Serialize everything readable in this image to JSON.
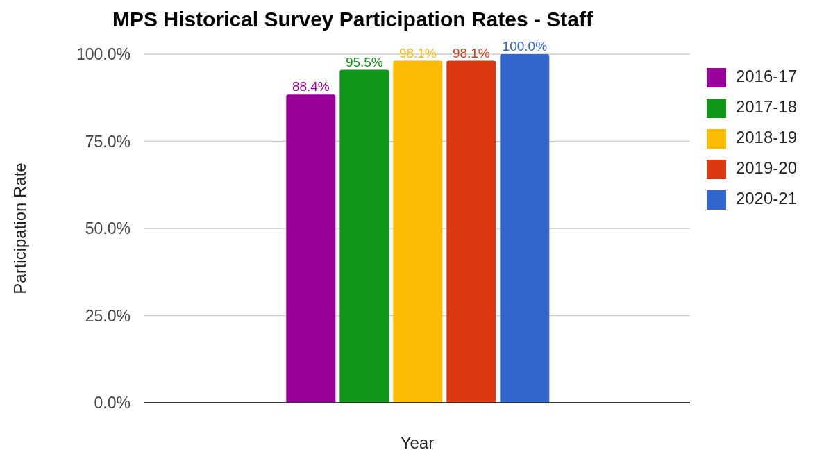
{
  "chart_data": {
    "type": "bar",
    "title": "MPS Historical Survey Participation Rates - Staff",
    "xlabel": "Year",
    "ylabel": "Participation Rate",
    "categories": [
      null
    ],
    "series": [
      {
        "name": "2016-17",
        "color": "#990099",
        "values": [
          88.4
        ],
        "value_labels": [
          "88.4%"
        ]
      },
      {
        "name": "2017-18",
        "color": "#109618",
        "values": [
          95.5
        ],
        "value_labels": [
          "95.5%"
        ]
      },
      {
        "name": "2018-19",
        "color": "#f9bb04",
        "values": [
          98.1
        ],
        "value_labels": [
          "98.1%"
        ]
      },
      {
        "name": "2019-20",
        "color": "#dc3912",
        "values": [
          98.1
        ],
        "value_labels": [
          "98.1%"
        ]
      },
      {
        "name": "2020-21",
        "color": "#3366cc",
        "values": [
          100.0
        ],
        "value_labels": [
          "100.0%"
        ]
      }
    ],
    "ylim": [
      0,
      100
    ],
    "yticks": [
      {
        "value": 0,
        "label": "0.0%"
      },
      {
        "value": 25,
        "label": "25.0%"
      },
      {
        "value": 50,
        "label": "50.0%"
      },
      {
        "value": 75,
        "label": "75.0%"
      },
      {
        "value": 100,
        "label": "100.0%"
      }
    ],
    "grid": "y",
    "legend": "top right"
  }
}
